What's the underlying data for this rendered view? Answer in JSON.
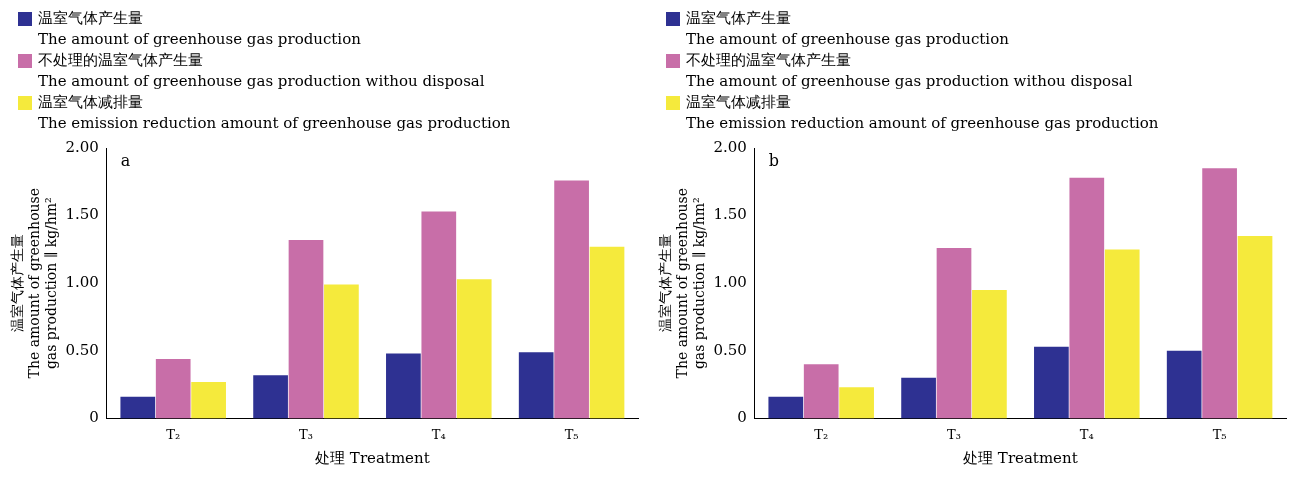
{
  "chart_data": [
    {
      "type": "bar",
      "annotations": [
        "a"
      ],
      "xlabel": "处理 Treatment",
      "ylabel": "温室气体产生量\nThe amount of greenhouse\ngas production ∥ kg/hm²",
      "categories": [
        "T₂",
        "T₃",
        "T₄",
        "T₅"
      ],
      "legend": "top left",
      "grid": false,
      "ylim": [
        0,
        2
      ],
      "yticks": [
        {
          "value": 0,
          "label": "0"
        },
        {
          "value": 0.5,
          "label": "0.50"
        },
        {
          "value": 1,
          "label": "1.00"
        },
        {
          "value": 1.5,
          "label": "1.50"
        },
        {
          "value": 2,
          "label": "2.00"
        }
      ],
      "series": [
        {
          "name": "温室气体产生量\nThe amount of greenhouse gas production",
          "color": "#2e3192",
          "values": [
            0.16,
            0.32,
            0.48,
            0.49
          ]
        },
        {
          "name": "不处理的温室气体产生量\nThe amount of greenhouse gas production withou disposal",
          "color": "#c86ea8",
          "values": [
            0.44,
            1.32,
            1.53,
            1.76
          ]
        },
        {
          "name": "温室气体减排量\nThe emission reduction amount of greenhouse gas production",
          "color": "#f5ea3c",
          "values": [
            0.27,
            0.99,
            1.03,
            1.27
          ]
        }
      ]
    },
    {
      "type": "bar",
      "annotations": [
        "b"
      ],
      "xlabel": "处理 Treatment",
      "ylabel": "温室气体产生量\nThe amount of greenhouse\ngas production ∥ kg/hm²",
      "categories": [
        "T₂",
        "T₃",
        "T₄",
        "T₅"
      ],
      "legend": "top left",
      "grid": false,
      "ylim": [
        0,
        2
      ],
      "yticks": [
        {
          "value": 0,
          "label": "0"
        },
        {
          "value": 0.5,
          "label": "0.50"
        },
        {
          "value": 1,
          "label": "1.00"
        },
        {
          "value": 1.5,
          "label": "1.50"
        },
        {
          "value": 2,
          "label": "2.00"
        }
      ],
      "series": [
        {
          "name": "温室气体产生量\nThe amount of greenhouse gas production",
          "color": "#2e3192",
          "values": [
            0.16,
            0.3,
            0.53,
            0.5
          ]
        },
        {
          "name": "不处理的温室气体产生量\nThe amount of greenhouse gas production withou disposal",
          "color": "#c86ea8",
          "values": [
            0.4,
            1.26,
            1.78,
            1.85
          ]
        },
        {
          "name": "温室气体减排量\nThe emission reduction amount of greenhouse gas production",
          "color": "#f5ea3c",
          "values": [
            0.23,
            0.95,
            1.25,
            1.35
          ]
        }
      ]
    }
  ]
}
